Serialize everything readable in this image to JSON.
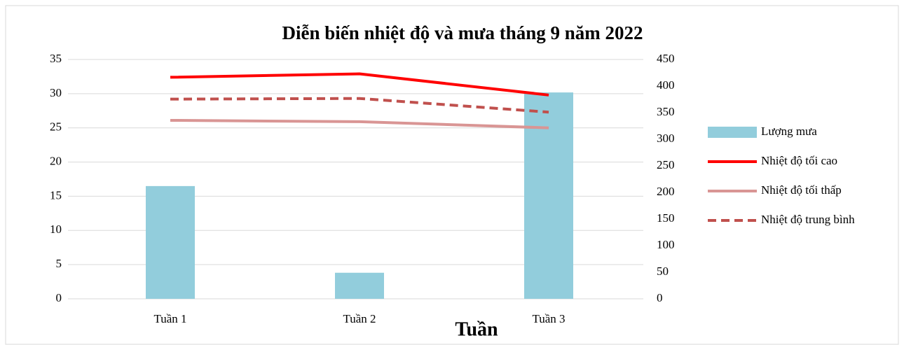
{
  "chart_data": {
    "type": "bar_line",
    "title": "Diễn biến nhiệt độ và mưa tháng 9 năm 2022",
    "x_label": "Tuần",
    "categories": [
      "Tuần 1",
      "Tuần 2",
      "Tuần 3"
    ],
    "series": [
      {
        "name": "Lượng mưa",
        "type": "bar",
        "axis": "y2",
        "color": "#92cddc",
        "values": [
          212,
          49,
          388
        ]
      },
      {
        "name": "Nhiệt độ tối cao",
        "type": "line",
        "color": "#ff0000",
        "values": [
          32.4,
          32.9,
          29.8
        ]
      },
      {
        "name": "Nhiệt độ tối thấp",
        "type": "line",
        "color": "#d99594",
        "values": [
          26.1,
          25.9,
          25.0
        ]
      },
      {
        "name": "Nhiệt độ trung bình",
        "type": "line",
        "dashed": true,
        "color": "#c0504d",
        "values": [
          29.2,
          29.3,
          27.3
        ]
      }
    ],
    "ylim": [
      0,
      35
    ],
    "yticks": [
      0,
      5,
      10,
      15,
      20,
      25,
      30,
      35
    ],
    "y2lim": [
      0,
      450
    ],
    "y2ticks": [
      0,
      50,
      100,
      150,
      200,
      250,
      300,
      350,
      400,
      450
    ],
    "grid": true,
    "legend": "right"
  }
}
